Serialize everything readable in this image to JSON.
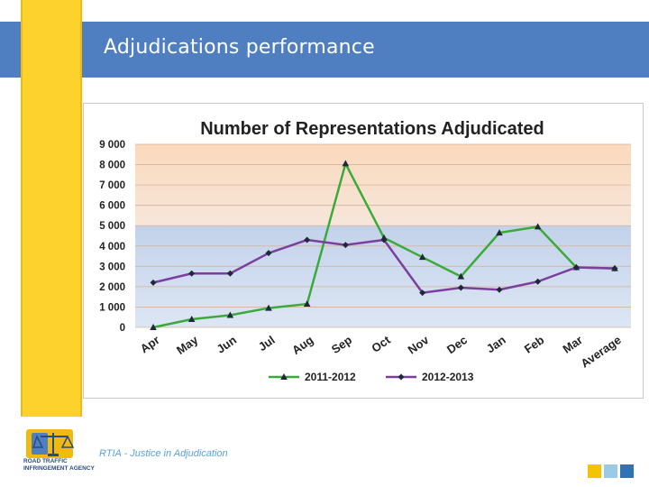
{
  "slide": {
    "title": "Adjudications performance",
    "footer": "RTIA - Justice in Adjudication",
    "logo_lines": [
      "ROAD TRAFFIC",
      "INFRINGEMENT AGENCY"
    ],
    "logo_icon": "scales-of-justice-icon",
    "colors": {
      "header": "#4f7fc1",
      "accent_yellow": "#fdd22c",
      "square_1": "#f5c400",
      "square_2": "#9cc9e5",
      "square_3": "#2e74b5"
    }
  },
  "chart_data": {
    "type": "line",
    "title": "Number of Representations Adjudicated",
    "categories": [
      "Apr",
      "May",
      "Jun",
      "Jul",
      "Aug",
      "Sep",
      "Oct",
      "Nov",
      "Dec",
      "Jan",
      "Feb",
      "Mar",
      "Average"
    ],
    "series": [
      {
        "name": "2011-2012",
        "color": "#3aab3a",
        "marker": "triangle",
        "values": [
          0,
          400,
          600,
          950,
          1150,
          8050,
          4400,
          3450,
          2500,
          4650,
          4950,
          2950,
          2900
        ]
      },
      {
        "name": "2012-2013",
        "color": "#7b3f9e",
        "marker": "diamond",
        "values": [
          2200,
          2650,
          2650,
          3650,
          4300,
          4050,
          4300,
          1700,
          1950,
          1850,
          2250,
          2950,
          2900
        ]
      }
    ],
    "y_ticks": [
      "9 000",
      "8 000",
      "7 000",
      "6 000",
      "5 000",
      "4 000",
      "3 000",
      "2 000",
      "1 000",
      "0"
    ],
    "ylim": [
      0,
      9000
    ],
    "bands": [
      {
        "from": 5000,
        "to": 9000,
        "color": "#f9d3b5"
      },
      {
        "from": 0,
        "to": 5000,
        "color": "#c7d7ee"
      }
    ],
    "grid": true,
    "legend_position": "bottom"
  }
}
